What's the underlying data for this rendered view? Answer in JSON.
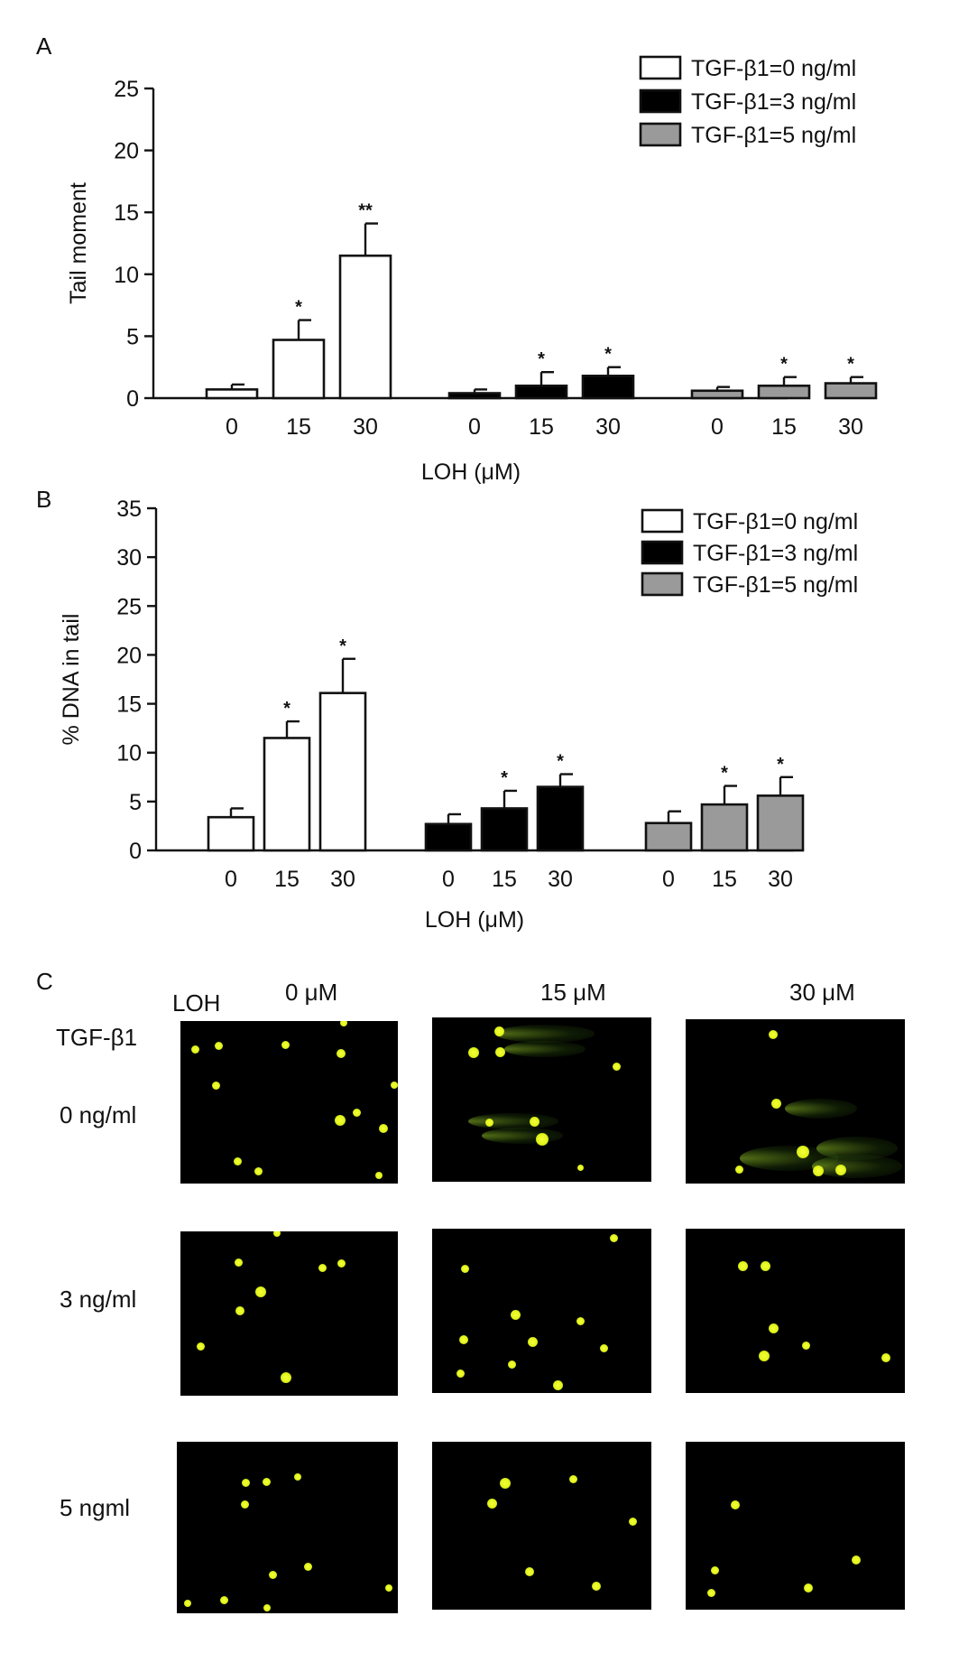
{
  "figure": {
    "panel_a_letter": "A",
    "panel_b_letter": "B",
    "panel_c_letter": "C"
  },
  "chart_data": [
    {
      "type": "bar",
      "panel": "A",
      "ylabel": "Tail moment",
      "xlabel": "LOH (μM)",
      "ylim": [
        0,
        25
      ],
      "yticks": [
        0,
        5,
        10,
        15,
        20,
        25
      ],
      "categories": [
        "0",
        "15",
        "30"
      ],
      "legend_position": "top-right",
      "series": [
        {
          "name": "TGF-β1=0 ng/ml",
          "color": "#ffffff",
          "values": [
            0.7,
            4.7,
            11.5
          ],
          "errors": [
            0.4,
            1.6,
            2.6
          ],
          "annotations": [
            "",
            "*",
            "**"
          ]
        },
        {
          "name": "TGF-β1=3 ng/ml",
          "color": "#000000",
          "values": [
            0.4,
            1.0,
            1.8
          ],
          "errors": [
            0.3,
            1.1,
            0.7
          ],
          "annotations": [
            "",
            "*",
            "*"
          ]
        },
        {
          "name": "TGF-β1=5 ng/ml",
          "color": "#9a9a9a",
          "values": [
            0.6,
            1.0,
            1.2
          ],
          "errors": [
            0.3,
            0.7,
            0.5
          ],
          "annotations": [
            "",
            "*",
            "*"
          ]
        }
      ]
    },
    {
      "type": "bar",
      "panel": "B",
      "ylabel": "% DNA in tail",
      "xlabel": "LOH (μM)",
      "ylim": [
        0,
        35
      ],
      "yticks": [
        0,
        5,
        10,
        15,
        20,
        25,
        30,
        35
      ],
      "categories": [
        "0",
        "15",
        "30"
      ],
      "legend_position": "top-right",
      "series": [
        {
          "name": "TGF-β1=0 ng/ml",
          "color": "#ffffff",
          "values": [
            3.4,
            11.5,
            16.1
          ],
          "errors": [
            0.9,
            1.7,
            3.5
          ],
          "annotations": [
            "",
            "*",
            "*"
          ]
        },
        {
          "name": "TGF-β1=3 ng/ml",
          "color": "#000000",
          "values": [
            2.7,
            4.3,
            6.5
          ],
          "errors": [
            1.0,
            1.8,
            1.3
          ],
          "annotations": [
            "",
            "*",
            "*"
          ]
        },
        {
          "name": "TGF-β1=5 ng/ml",
          "color": "#9a9a9a",
          "values": [
            2.8,
            4.7,
            5.6
          ],
          "errors": [
            1.2,
            1.9,
            1.9
          ],
          "annotations": [
            "",
            "*",
            "*"
          ]
        }
      ]
    }
  ],
  "micrographs": {
    "loh_header": "LOH",
    "tgf_header": "TGF-β1",
    "columns": [
      "0 μM",
      "15 μM",
      "30 μM"
    ],
    "rows": [
      "0 ng/ml",
      "3 ng/ml",
      "5 ngml"
    ],
    "cell_color": "#e8f51e",
    "background_color": "#000000"
  }
}
